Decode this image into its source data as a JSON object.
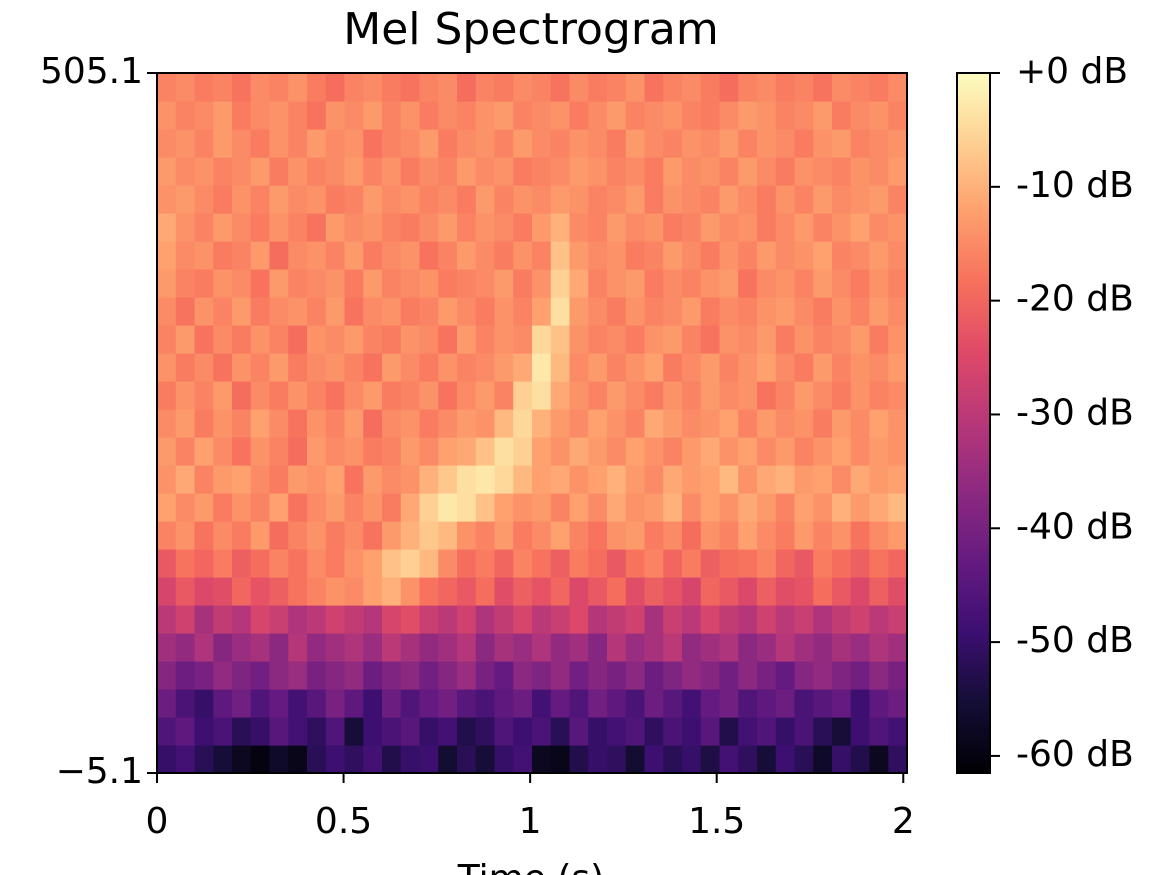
{
  "chart_data": {
    "type": "heatmap",
    "title": "Mel Spectrogram",
    "xlabel": "Time (s)",
    "colormap": "magma",
    "xlim": [
      0,
      2.01
    ],
    "xticks": [
      0,
      0.5,
      1,
      1.5,
      2
    ],
    "ylim": [
      -5.1,
      505.1
    ],
    "yticks": [
      {
        "value": -5.1,
        "label": "−5.1"
      },
      505.1
    ],
    "clim": [
      -61.5,
      0
    ],
    "cticks": [
      {
        "value": 0,
        "label": "+0 dB"
      },
      {
        "value": -10,
        "label": "-10 dB"
      },
      {
        "value": -20,
        "label": "-20 dB"
      },
      {
        "value": -30,
        "label": "-30 dB"
      },
      {
        "value": -40,
        "label": "-40 dB"
      },
      {
        "value": -50,
        "label": "-50 dB"
      },
      {
        "value": -60,
        "label": "-60 dB"
      }
    ],
    "z": [
      [
        -50,
        -48,
        -52,
        -55,
        -58,
        -60,
        -57,
        -59,
        -52,
        -49,
        -51,
        -48,
        -53,
        -50,
        -49,
        -56,
        -52,
        -55,
        -50,
        -48,
        -58,
        -59,
        -53,
        -50,
        -51,
        -56,
        -49,
        -52,
        -50,
        -54,
        -48,
        -51,
        -55,
        -49,
        -52,
        -57,
        -50,
        -53,
        -58,
        -51
      ],
      [
        -46,
        -44,
        -49,
        -47,
        -52,
        -50,
        -45,
        -48,
        -51,
        -46,
        -55,
        -49,
        -47,
        -45,
        -50,
        -48,
        -53,
        -51,
        -46,
        -49,
        -47,
        -52,
        -45,
        -50,
        -48,
        -46,
        -51,
        -47,
        -49,
        -45,
        -53,
        -48,
        -46,
        -50,
        -47,
        -52,
        -55,
        -49,
        -46,
        -48
      ],
      [
        -42,
        -47,
        -50,
        -44,
        -41,
        -46,
        -43,
        -48,
        -45,
        -40,
        -44,
        -49,
        -42,
        -46,
        -43,
        -41,
        -45,
        -47,
        -44,
        -42,
        -48,
        -43,
        -46,
        -41,
        -44,
        -47,
        -42,
        -45,
        -48,
        -43,
        -41,
        -46,
        -44,
        -42,
        -47,
        -45,
        -43,
        -49,
        -44,
        -42
      ],
      [
        -38,
        -42,
        -40,
        -36,
        -39,
        -41,
        -37,
        -35,
        -40,
        -38,
        -36,
        -42,
        -39,
        -37,
        -41,
        -38,
        -35,
        -40,
        -43,
        -37,
        -39,
        -36,
        -41,
        -38,
        -40,
        -37,
        -42,
        -39,
        -36,
        -38,
        -41,
        -37,
        -40,
        -43,
        -38,
        -36,
        -39,
        -41,
        -37,
        -40
      ],
      [
        -34,
        -36,
        -32,
        -38,
        -35,
        -33,
        -37,
        -31,
        -36,
        -34,
        -32,
        -35,
        -30,
        -33,
        -36,
        -34,
        -31,
        -37,
        -33,
        -35,
        -32,
        -36,
        -34,
        -38,
        -31,
        -35,
        -33,
        -30,
        -36,
        -34,
        -32,
        -37,
        -35,
        -31,
        -34,
        -36,
        -33,
        -35,
        -32,
        -34
      ],
      [
        -30,
        -27,
        -33,
        -29,
        -31,
        -26,
        -28,
        -32,
        -30,
        -27,
        -29,
        -31,
        -26,
        -24,
        -28,
        -30,
        -27,
        -32,
        -29,
        -26,
        -30,
        -28,
        -25,
        -31,
        -29,
        -27,
        -33,
        -28,
        -30,
        -26,
        -29,
        -31,
        -27,
        -30,
        -28,
        -32,
        -29,
        -27,
        -30,
        -28
      ],
      [
        -26,
        -22,
        -25,
        -24,
        -20,
        -23,
        -21,
        -18,
        -16,
        -14,
        -15,
        -12,
        -10,
        -14,
        -18,
        -20,
        -22,
        -19,
        -24,
        -21,
        -23,
        -20,
        -25,
        -22,
        -19,
        -24,
        -21,
        -23,
        -26,
        -20,
        -22,
        -25,
        -21,
        -24,
        -23,
        -19,
        -22,
        -25,
        -21,
        -24
      ],
      [
        -22,
        -18,
        -20,
        -17,
        -21,
        -19,
        -16,
        -18,
        -15,
        -17,
        -14,
        -12,
        -8,
        -6,
        -9,
        -15,
        -19,
        -17,
        -20,
        -16,
        -18,
        -21,
        -17,
        -19,
        -22,
        -18,
        -16,
        -20,
        -17,
        -21,
        -19,
        -18,
        -16,
        -20,
        -22,
        -17,
        -19,
        -21,
        -18,
        -20
      ],
      [
        -16,
        -14,
        -18,
        -15,
        -17,
        -13,
        -19,
        -16,
        -14,
        -17,
        -15,
        -18,
        -13,
        -10,
        -7,
        -9,
        -14,
        -16,
        -13,
        -17,
        -15,
        -12,
        -16,
        -18,
        -14,
        -13,
        -17,
        -15,
        -19,
        -14,
        -16,
        -12,
        -15,
        -17,
        -13,
        -16,
        -14,
        -18,
        -15,
        -13
      ],
      [
        -12,
        -15,
        -13,
        -17,
        -14,
        -16,
        -12,
        -18,
        -15,
        -13,
        -16,
        -14,
        -17,
        -11,
        -6,
        -3,
        -4,
        -8,
        -12,
        -14,
        -13,
        -16,
        -12,
        -15,
        -11,
        -14,
        -13,
        -10,
        -15,
        -12,
        -14,
        -11,
        -13,
        -16,
        -12,
        -14,
        -10,
        -13,
        -11,
        -9
      ],
      [
        -14,
        -11,
        -16,
        -13,
        -12,
        -15,
        -17,
        -13,
        -14,
        -12,
        -18,
        -13,
        -15,
        -14,
        -10,
        -7,
        -4,
        -3,
        -5,
        -9,
        -12,
        -11,
        -14,
        -12,
        -10,
        -13,
        -15,
        -11,
        -13,
        -12,
        -9,
        -14,
        -11,
        -10,
        -13,
        -12,
        -15,
        -11,
        -13,
        -12
      ],
      [
        -13,
        -16,
        -12,
        -15,
        -18,
        -14,
        -16,
        -19,
        -13,
        -15,
        -14,
        -17,
        -16,
        -13,
        -15,
        -12,
        -11,
        -8,
        -4,
        -6,
        -12,
        -14,
        -11,
        -13,
        -15,
        -12,
        -14,
        -16,
        -13,
        -11,
        -14,
        -12,
        -15,
        -13,
        -16,
        -14,
        -12,
        -15,
        -13,
        -14
      ],
      [
        -15,
        -13,
        -17,
        -14,
        -16,
        -12,
        -15,
        -18,
        -14,
        -16,
        -13,
        -19,
        -15,
        -14,
        -17,
        -15,
        -13,
        -14,
        -9,
        -5,
        -10,
        -13,
        -15,
        -12,
        -14,
        -16,
        -11,
        -13,
        -15,
        -14,
        -12,
        -16,
        -13,
        -15,
        -14,
        -17,
        -13,
        -15,
        -12,
        -14
      ],
      [
        -17,
        -14,
        -16,
        -13,
        -19,
        -15,
        -17,
        -14,
        -16,
        -18,
        -15,
        -13,
        -17,
        -16,
        -14,
        -18,
        -15,
        -13,
        -16,
        -6,
        -4,
        -11,
        -14,
        -16,
        -13,
        -15,
        -17,
        -14,
        -16,
        -13,
        -15,
        -14,
        -18,
        -16,
        -13,
        -15,
        -17,
        -14,
        -16,
        -15
      ],
      [
        -14,
        -17,
        -15,
        -18,
        -14,
        -16,
        -13,
        -17,
        -15,
        -14,
        -16,
        -18,
        -13,
        -15,
        -17,
        -14,
        -16,
        -15,
        -13,
        -11,
        -3,
        -9,
        -15,
        -13,
        -16,
        -14,
        -12,
        -17,
        -15,
        -13,
        -16,
        -14,
        -12,
        -15,
        -17,
        -13,
        -16,
        -14,
        -15,
        -13
      ],
      [
        -16,
        -13,
        -18,
        -15,
        -17,
        -14,
        -16,
        -19,
        -14,
        -15,
        -13,
        -16,
        -17,
        -14,
        -15,
        -18,
        -13,
        -16,
        -14,
        -15,
        -5,
        -8,
        -14,
        -16,
        -15,
        -17,
        -14,
        -13,
        -16,
        -18,
        -14,
        -15,
        -13,
        -17,
        -14,
        -16,
        -15,
        -13,
        -17,
        -14
      ],
      [
        -15,
        -18,
        -14,
        -16,
        -13,
        -17,
        -15,
        -14,
        -16,
        -13,
        -18,
        -15,
        -14,
        -17,
        -16,
        -13,
        -15,
        -17,
        -14,
        -16,
        -12,
        -4,
        -13,
        -15,
        -17,
        -14,
        -16,
        -15,
        -13,
        -17,
        -15,
        -16,
        -14,
        -13,
        -15,
        -17,
        -14,
        -16,
        -13,
        -15
      ],
      [
        -13,
        -16,
        -17,
        -14,
        -15,
        -18,
        -13,
        -16,
        -15,
        -14,
        -17,
        -13,
        -16,
        -15,
        -14,
        -17,
        -16,
        -15,
        -13,
        -17,
        -14,
        -6,
        -11,
        -16,
        -14,
        -13,
        -17,
        -15,
        -16,
        -14,
        -13,
        -18,
        -15,
        -14,
        -16,
        -13,
        -15,
        -17,
        -14,
        -16
      ],
      [
        -12,
        -15,
        -14,
        -17,
        -16,
        -13,
        -19,
        -15,
        -14,
        -16,
        -13,
        -17,
        -15,
        -14,
        -18,
        -16,
        -13,
        -15,
        -17,
        -14,
        -16,
        -8,
        -13,
        -15,
        -14,
        -17,
        -16,
        -13,
        -15,
        -17,
        -14,
        -16,
        -13,
        -15,
        -14,
        -12,
        -16,
        -15,
        -13,
        -15
      ],
      [
        -11,
        -14,
        -16,
        -13,
        -15,
        -17,
        -14,
        -16,
        -18,
        -13,
        -15,
        -14,
        -16,
        -17,
        -15,
        -13,
        -16,
        -14,
        -15,
        -17,
        -13,
        -10,
        -15,
        -16,
        -13,
        -15,
        -14,
        -17,
        -16,
        -13,
        -15,
        -14,
        -17,
        -15,
        -13,
        -16,
        -14,
        -12,
        -15,
        -14
      ],
      [
        -14,
        -13,
        -15,
        -17,
        -14,
        -16,
        -13,
        -15,
        -14,
        -17,
        -16,
        -13,
        -15,
        -14,
        -16,
        -15,
        -17,
        -13,
        -16,
        -14,
        -15,
        -13,
        -14,
        -16,
        -15,
        -13,
        -17,
        -14,
        -15,
        -16,
        -13,
        -15,
        -17,
        -14,
        -16,
        -13,
        -15,
        -14,
        -13,
        -16
      ],
      [
        -13,
        -15,
        -14,
        -16,
        -15,
        -13,
        -17,
        -14,
        -16,
        -15,
        -13,
        -16,
        -14,
        -17,
        -15,
        -16,
        -13,
        -15,
        -14,
        -17,
        -16,
        -15,
        -13,
        -14,
        -16,
        -15,
        -17,
        -13,
        -15,
        -14,
        -16,
        -13,
        -15,
        -17,
        -14,
        -15,
        -16,
        -14,
        -15,
        -13
      ],
      [
        -15,
        -14,
        -16,
        -13,
        -15,
        -17,
        -14,
        -16,
        -13,
        -15,
        -14,
        -18,
        -16,
        -15,
        -13,
        -17,
        -15,
        -14,
        -16,
        -13,
        -15,
        -16,
        -14,
        -15,
        -17,
        -13,
        -15,
        -16,
        -14,
        -15,
        -13,
        -16,
        -14,
        -15,
        -17,
        -14,
        -13,
        -16,
        -15,
        -14
      ],
      [
        -14,
        -16,
        -15,
        -13,
        -17,
        -15,
        -14,
        -16,
        -18,
        -14,
        -15,
        -13,
        -16,
        -14,
        -17,
        -15,
        -16,
        -14,
        -13,
        -16,
        -15,
        -14,
        -17,
        -15,
        -13,
        -16,
        -15,
        -14,
        -16,
        -17,
        -15,
        -13,
        -14,
        -16,
        -15,
        -13,
        -17,
        -15,
        -14,
        -16
      ],
      [
        -16,
        -15,
        -17,
        -16,
        -18,
        -15,
        -16,
        -14,
        -17,
        -19,
        -16,
        -15,
        -17,
        -18,
        -16,
        -15,
        -19,
        -16,
        -17,
        -15,
        -16,
        -18,
        -15,
        -17,
        -16,
        -14,
        -18,
        -16,
        -15,
        -17,
        -19,
        -16,
        -15,
        -17,
        -16,
        -18,
        -15,
        -16,
        -17,
        -15
      ]
    ]
  }
}
